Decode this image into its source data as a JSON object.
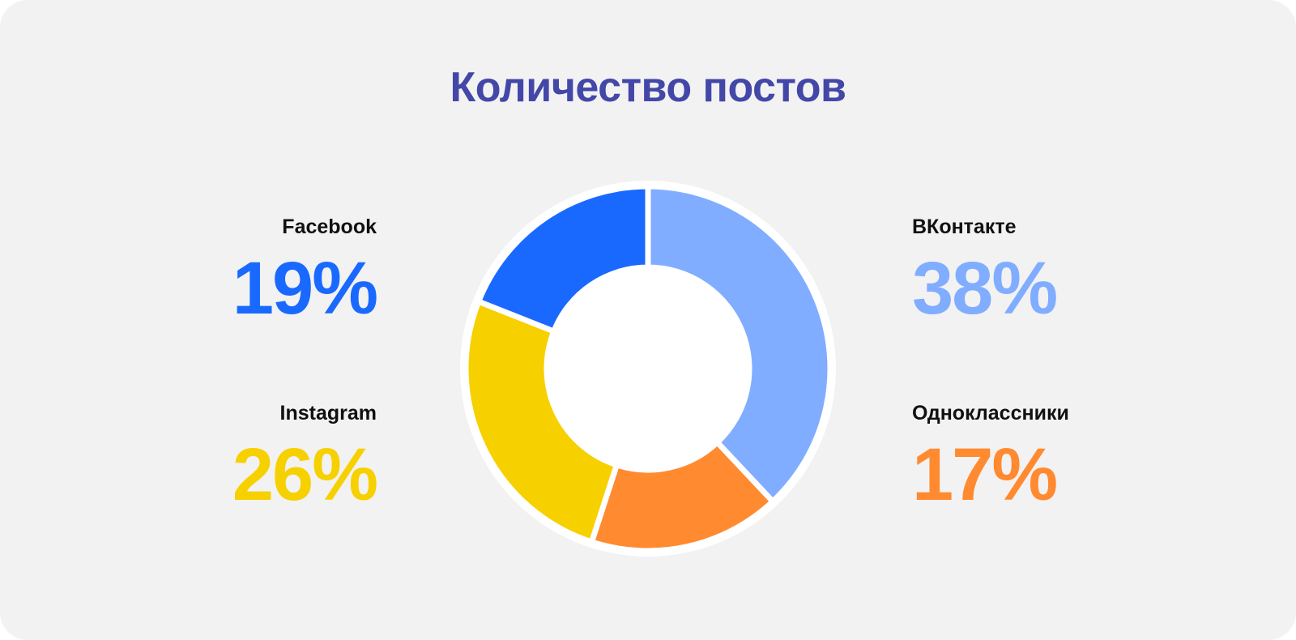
{
  "title": "Количество постов",
  "chart_data": {
    "type": "pie",
    "title": "Количество постов",
    "labels": [
      "ВКонтакте",
      "Одноклассники",
      "Instagram",
      "Facebook"
    ],
    "values": [
      38,
      17,
      26,
      19
    ],
    "value_labels": [
      "38%",
      "17%",
      "26%",
      "19%"
    ],
    "colors": [
      "#80adff",
      "#ff8a30",
      "#f7d000",
      "#1a69ff"
    ],
    "donut": true
  }
}
